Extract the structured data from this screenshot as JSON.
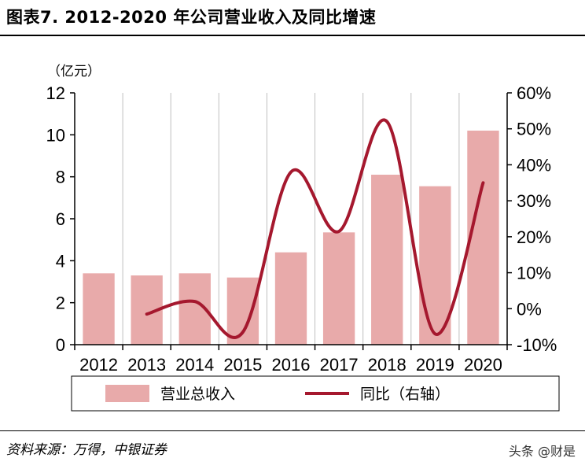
{
  "header": {
    "title": "图表7. 2012-2020 年公司营业收入及同比增速"
  },
  "footer": {
    "source": "资料来源：万得，中银证券",
    "watermark": "头条 @财是"
  },
  "colors": {
    "bar": "#e8aaaa",
    "line": "#a5182e",
    "grid": "#bfbfbf"
  },
  "chart_data": {
    "type": "bar+line",
    "left_axis_unit": "（亿元）",
    "categories": [
      "2012",
      "2013",
      "2014",
      "2015",
      "2016",
      "2017",
      "2018",
      "2019",
      "2020"
    ],
    "series": [
      {
        "name": "营业总收入",
        "type": "bar",
        "axis": "left",
        "values": [
          3.4,
          3.3,
          3.4,
          3.2,
          4.4,
          5.35,
          8.1,
          7.55,
          10.2
        ]
      },
      {
        "name": "同比（右轴）",
        "type": "line",
        "axis": "right",
        "values": [
          null,
          -1.5,
          2.0,
          -6.5,
          38.0,
          21.5,
          52.0,
          -7.0,
          35.0
        ]
      }
    ],
    "left_ylim": [
      0,
      12
    ],
    "left_ticks": [
      0,
      2,
      4,
      6,
      8,
      10,
      12
    ],
    "right_ylim": [
      -10,
      60
    ],
    "right_ticks": [
      -10,
      0,
      10,
      20,
      30,
      40,
      50,
      60
    ],
    "right_tick_labels": [
      "-10%",
      "0%",
      "10%",
      "20%",
      "30%",
      "40%",
      "50%",
      "60%"
    ],
    "legend": [
      "营业总收入",
      "同比（右轴）"
    ],
    "legend_position": "bottom",
    "grid": "vertical"
  }
}
